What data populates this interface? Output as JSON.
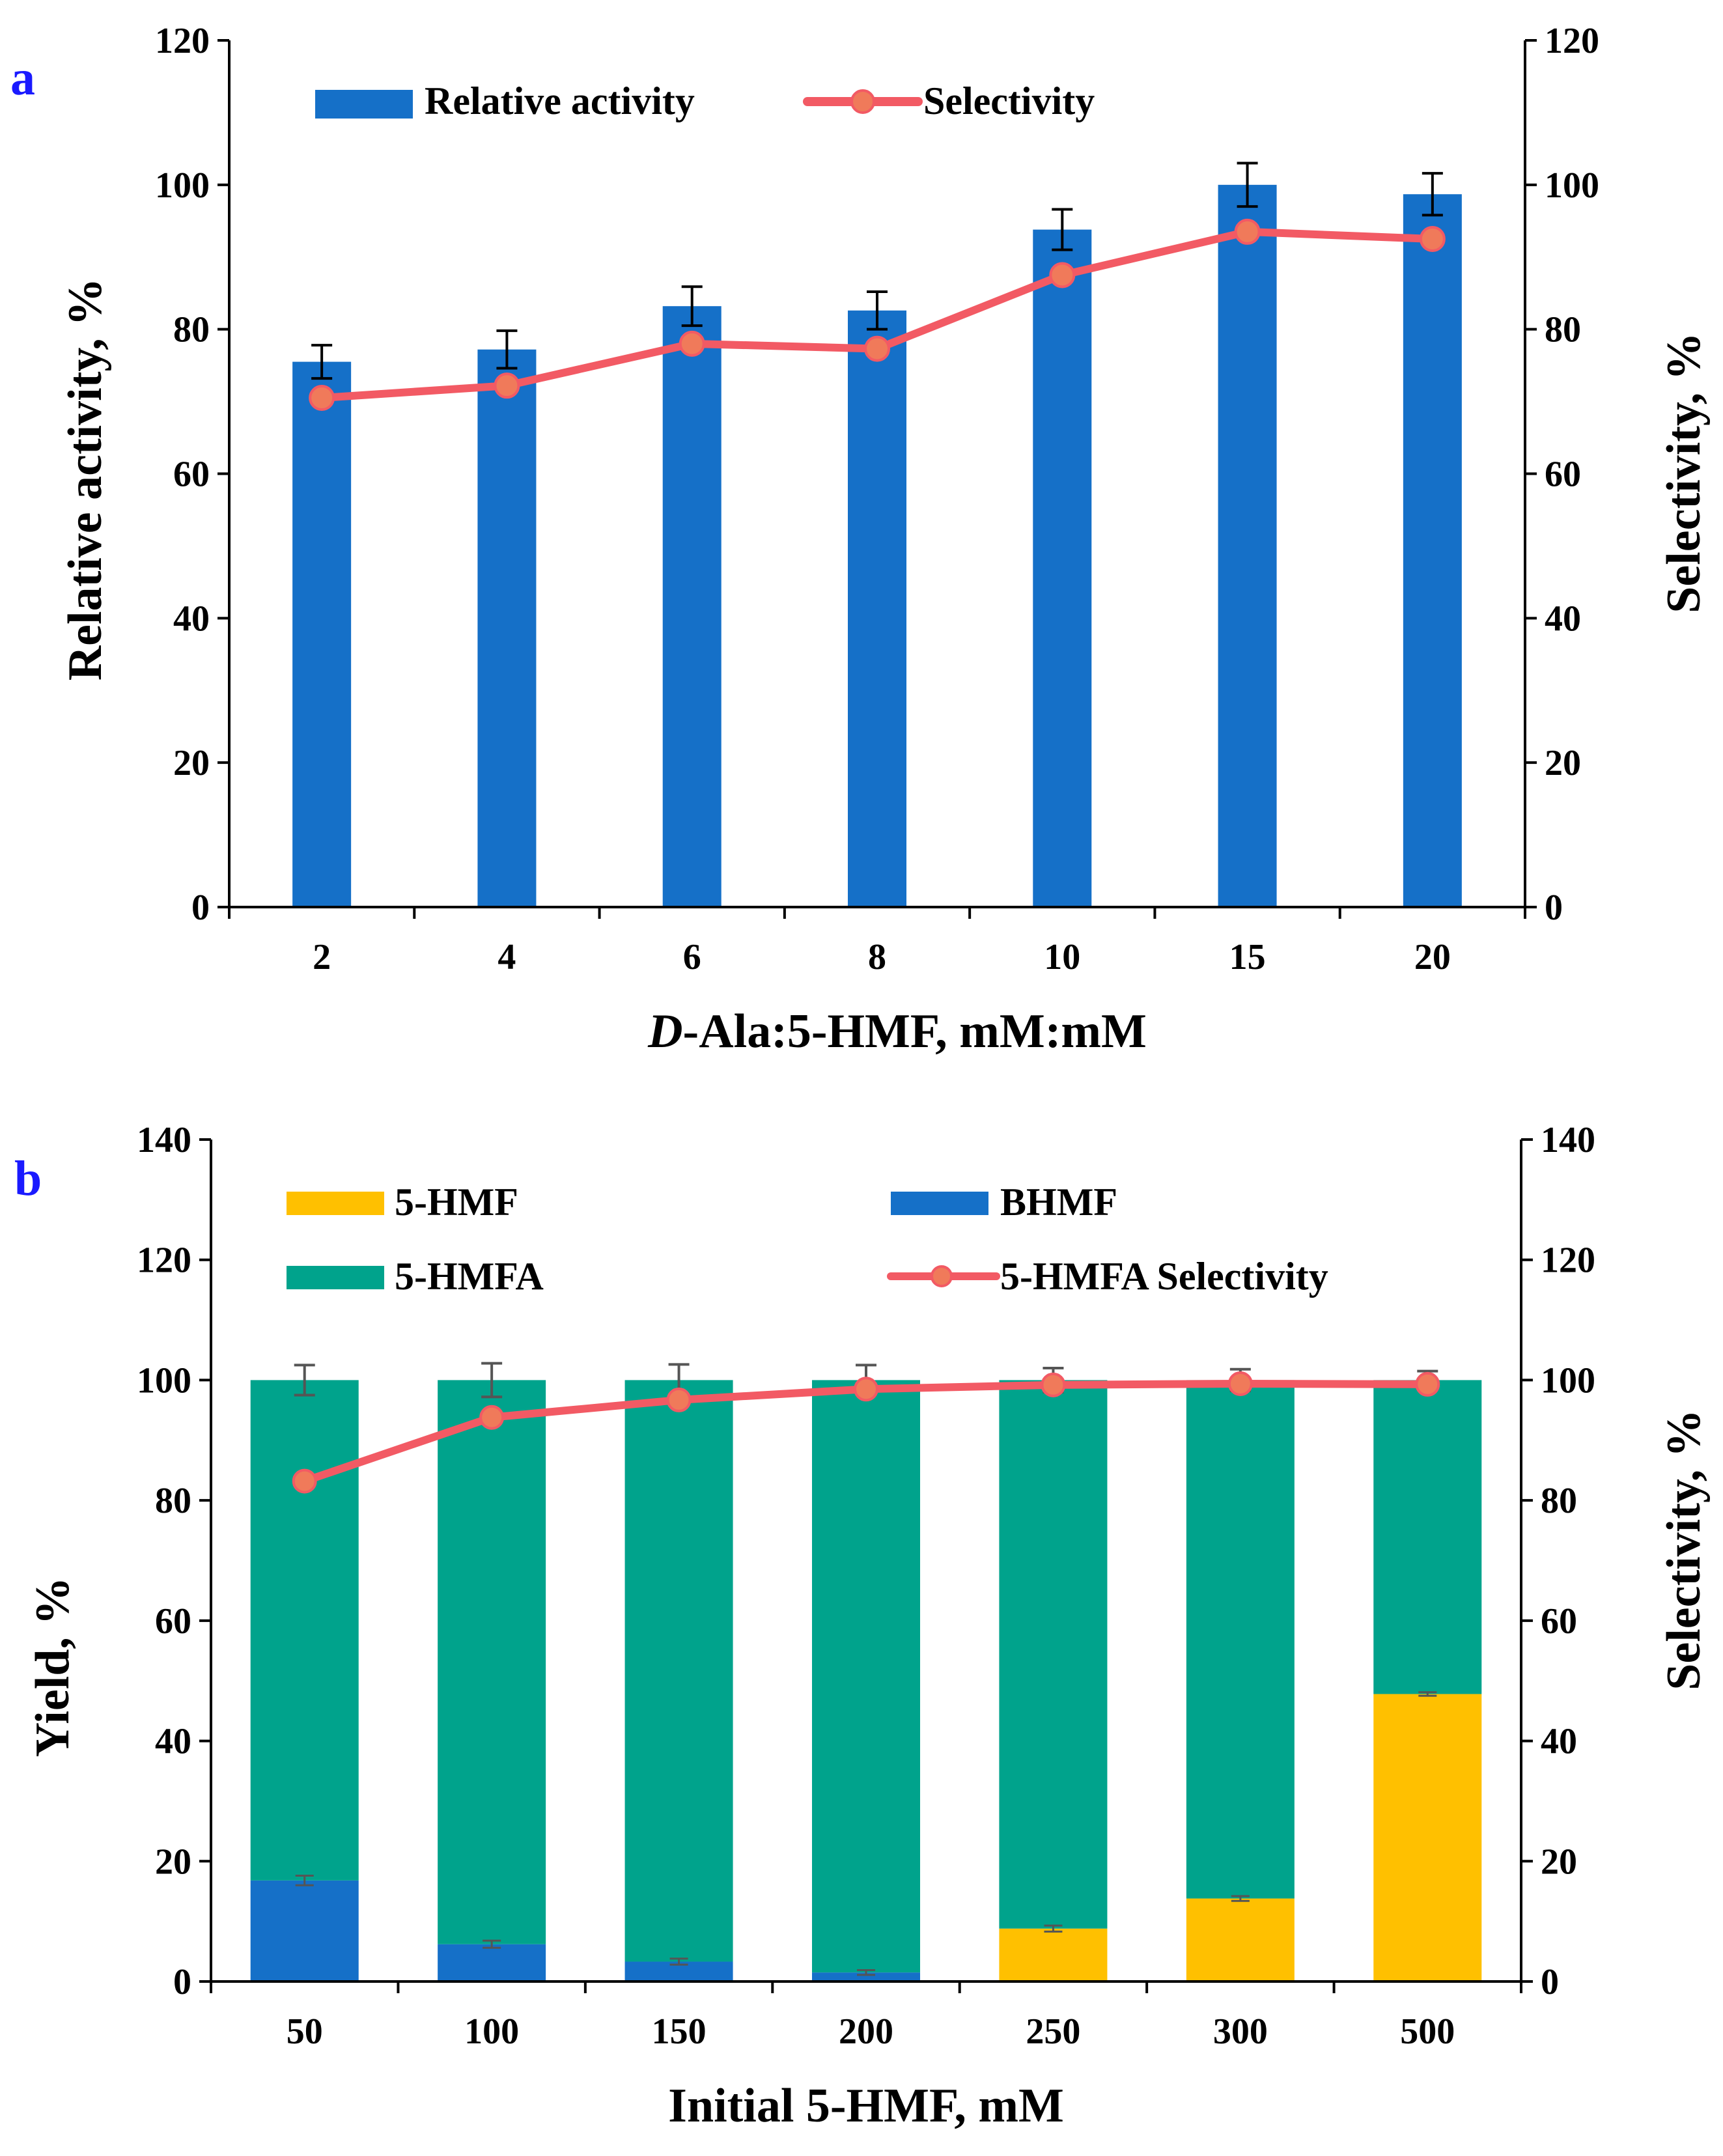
{
  "colors": {
    "bar_blue": "#1570c8",
    "hmfa_green": "#00a38c",
    "hmf_yellow": "#ffc000",
    "line_red": "#f25a64",
    "marker_orange": "#f07a5a",
    "panel_label": "#1a1aff"
  },
  "chart_data": [
    {
      "panel": "a",
      "type": "bar+line",
      "categories": [
        "2",
        "4",
        "6",
        "8",
        "10",
        "15",
        "20"
      ],
      "xlabel_italic": "D",
      "xlabel_rest": "-Ala:5-HMF, mM:mM",
      "ylabel": "Relative activity, %",
      "y2label": "Selectivity, %",
      "ylim": [
        0,
        120
      ],
      "y2lim": [
        0,
        120
      ],
      "yticks": [
        "0",
        "20",
        "40",
        "60",
        "80",
        "100",
        "120"
      ],
      "y2ticks": [
        "0",
        "20",
        "40",
        "60",
        "80",
        "100",
        "120"
      ],
      "series": [
        {
          "name": "Relative activity",
          "kind": "bar",
          "values": [
            75.5,
            77.2,
            83.2,
            82.6,
            93.8,
            100.0,
            98.7
          ],
          "errors": [
            2.3,
            2.6,
            2.7,
            2.6,
            2.8,
            3.0,
            2.9
          ]
        },
        {
          "name": "Selectivity",
          "kind": "line",
          "values": [
            70.5,
            72.2,
            78.0,
            77.3,
            87.5,
            93.5,
            92.5
          ]
        }
      ]
    },
    {
      "panel": "b",
      "type": "stacked-bar+line",
      "categories": [
        "50",
        "100",
        "150",
        "200",
        "250",
        "300",
        "500"
      ],
      "xlabel": "Initial 5-HMF, mM",
      "ylabel": "Yield, %",
      "y2label": "Selectivity, %",
      "ylim": [
        0,
        140
      ],
      "y2lim": [
        0,
        140
      ],
      "yticks": [
        "0",
        "20",
        "40",
        "60",
        "80",
        "100",
        "120",
        "140"
      ],
      "y2ticks": [
        "0",
        "20",
        "40",
        "60",
        "80",
        "100",
        "120",
        "140"
      ],
      "series": [
        {
          "name": "5-HMF",
          "kind": "stack",
          "values": [
            0,
            0,
            0,
            0,
            8.8,
            13.8,
            47.8
          ]
        },
        {
          "name": "BHMF",
          "kind": "stack",
          "values": [
            16.8,
            6.2,
            3.3,
            1.5,
            0,
            0,
            0
          ]
        },
        {
          "name": "5-HMFA",
          "kind": "stack",
          "values": [
            83.2,
            93.8,
            96.7,
            98.5,
            91.2,
            86.2,
            52.2
          ]
        },
        {
          "name": "5-HMFA Selectivity",
          "kind": "line",
          "values": [
            83.2,
            93.8,
            96.7,
            98.5,
            99.2,
            99.4,
            99.3
          ]
        }
      ],
      "top_errors": [
        2.5,
        2.8,
        2.6,
        2.5,
        2.0,
        1.8,
        1.5
      ],
      "lower_errors": [
        0.8,
        0.6,
        0.5,
        0.4,
        0.5,
        0.4,
        0.3
      ]
    }
  ],
  "panel_a": {
    "label": "a",
    "legend": {
      "bar_label": "Relative activity",
      "line_label": "Selectivity"
    }
  },
  "panel_b": {
    "label": "b",
    "legend": {
      "hmf_label": "5-HMF",
      "bhmf_label": "BHMF",
      "hmfa_label": "5-HMFA",
      "sel_label": "5-HMFA Selectivity"
    }
  }
}
